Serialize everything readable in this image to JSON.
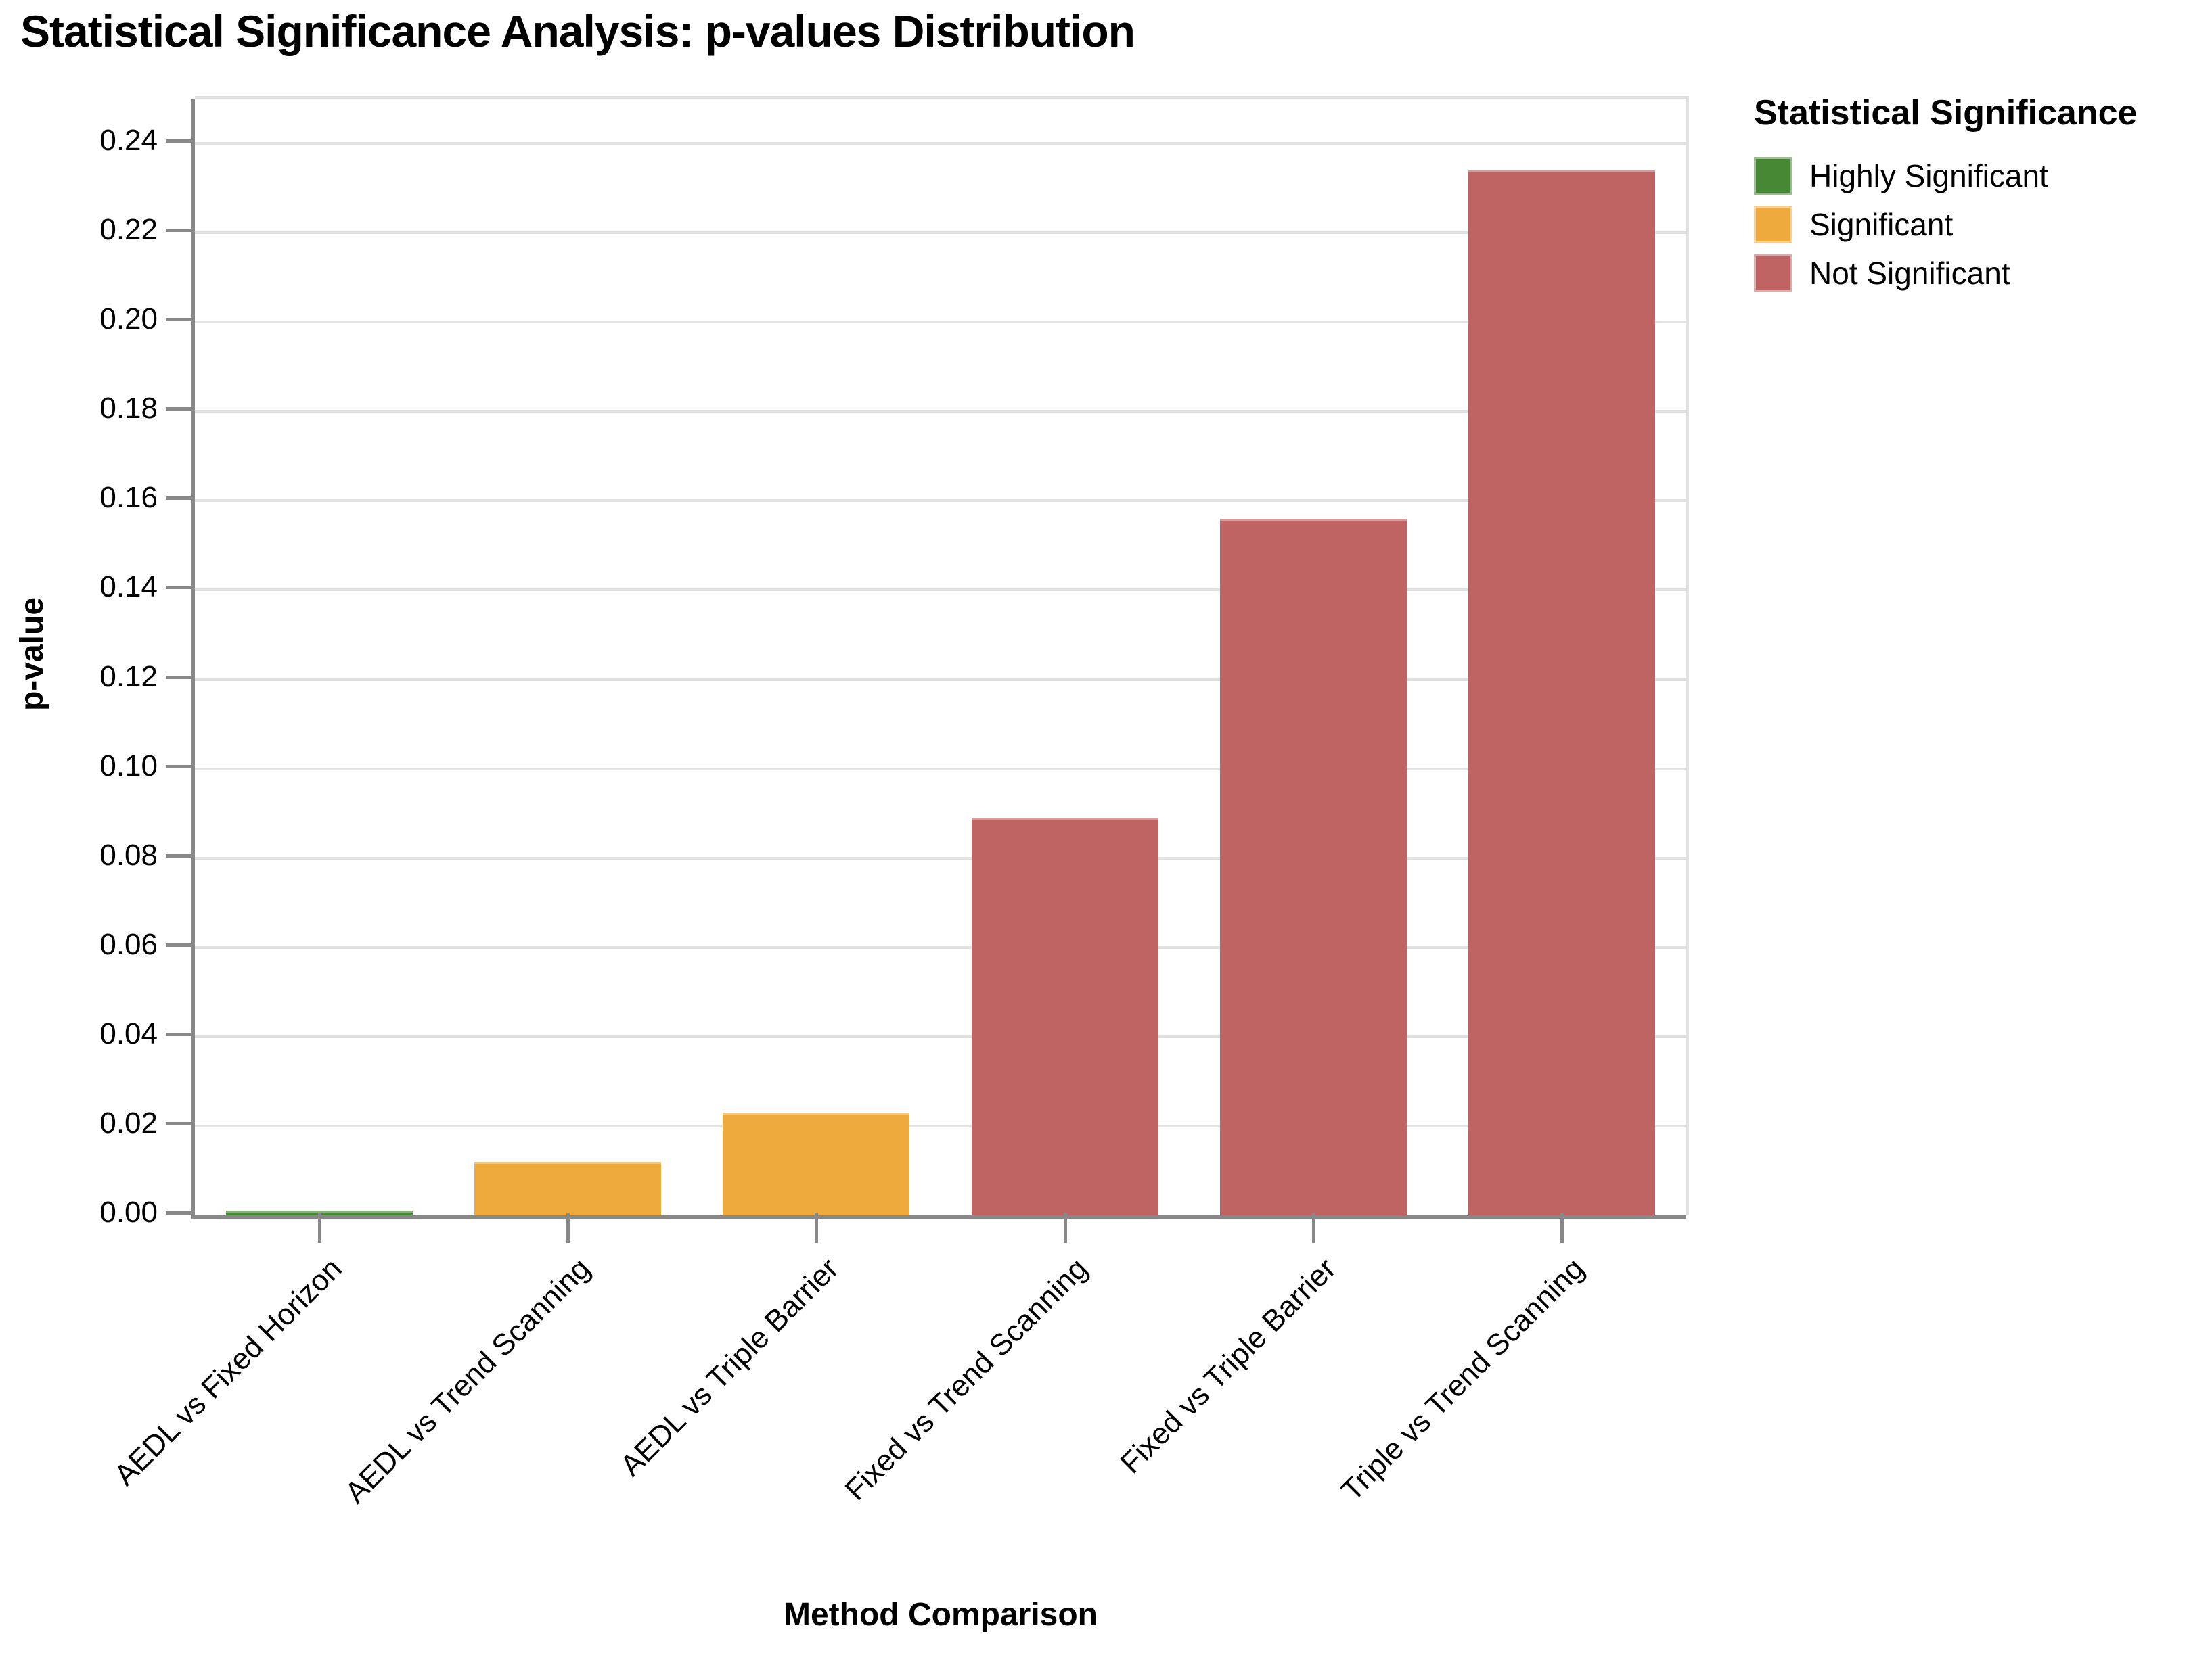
{
  "title": "Statistical Significance Analysis: p-values Distribution",
  "chart_data": {
    "type": "bar",
    "title": "Statistical Significance Analysis: p-values Distribution",
    "xlabel": "Method Comparison",
    "ylabel": "p-value",
    "categories": [
      "AEDL vs Fixed Horizon",
      "AEDL vs Trend Scanning",
      "AEDL vs Triple Barrier",
      "Fixed vs Trend Scanning",
      "Fixed vs Triple Barrier",
      "Triple vs Trend Scanning"
    ],
    "values": [
      0.001,
      0.012,
      0.023,
      0.089,
      0.156,
      0.234
    ],
    "significance": [
      "Highly Significant",
      "Significant",
      "Significant",
      "Not Significant",
      "Not Significant",
      "Not Significant"
    ],
    "bar_colors": [
      "#478834",
      "#EFAA3D",
      "#EFAA3D",
      "#BF6463",
      "#BF6463",
      "#BF6463"
    ],
    "ylim": [
      0,
      0.25
    ],
    "yticks": [
      "0.00",
      "0.02",
      "0.04",
      "0.06",
      "0.08",
      "0.10",
      "0.12",
      "0.14",
      "0.16",
      "0.18",
      "0.20",
      "0.22",
      "0.24"
    ],
    "grid": true,
    "legend_position": "top-right"
  },
  "legend": {
    "title": "Statistical Significance",
    "items": [
      {
        "label": "Highly Significant",
        "color": "#478834"
      },
      {
        "label": "Significant",
        "color": "#EFAA3D"
      },
      {
        "label": "Not Significant",
        "color": "#BF6463"
      }
    ]
  },
  "colors": {
    "grid": "#e2e2e2",
    "axis": "#888888",
    "text": "#000000",
    "background": "#ffffff"
  }
}
